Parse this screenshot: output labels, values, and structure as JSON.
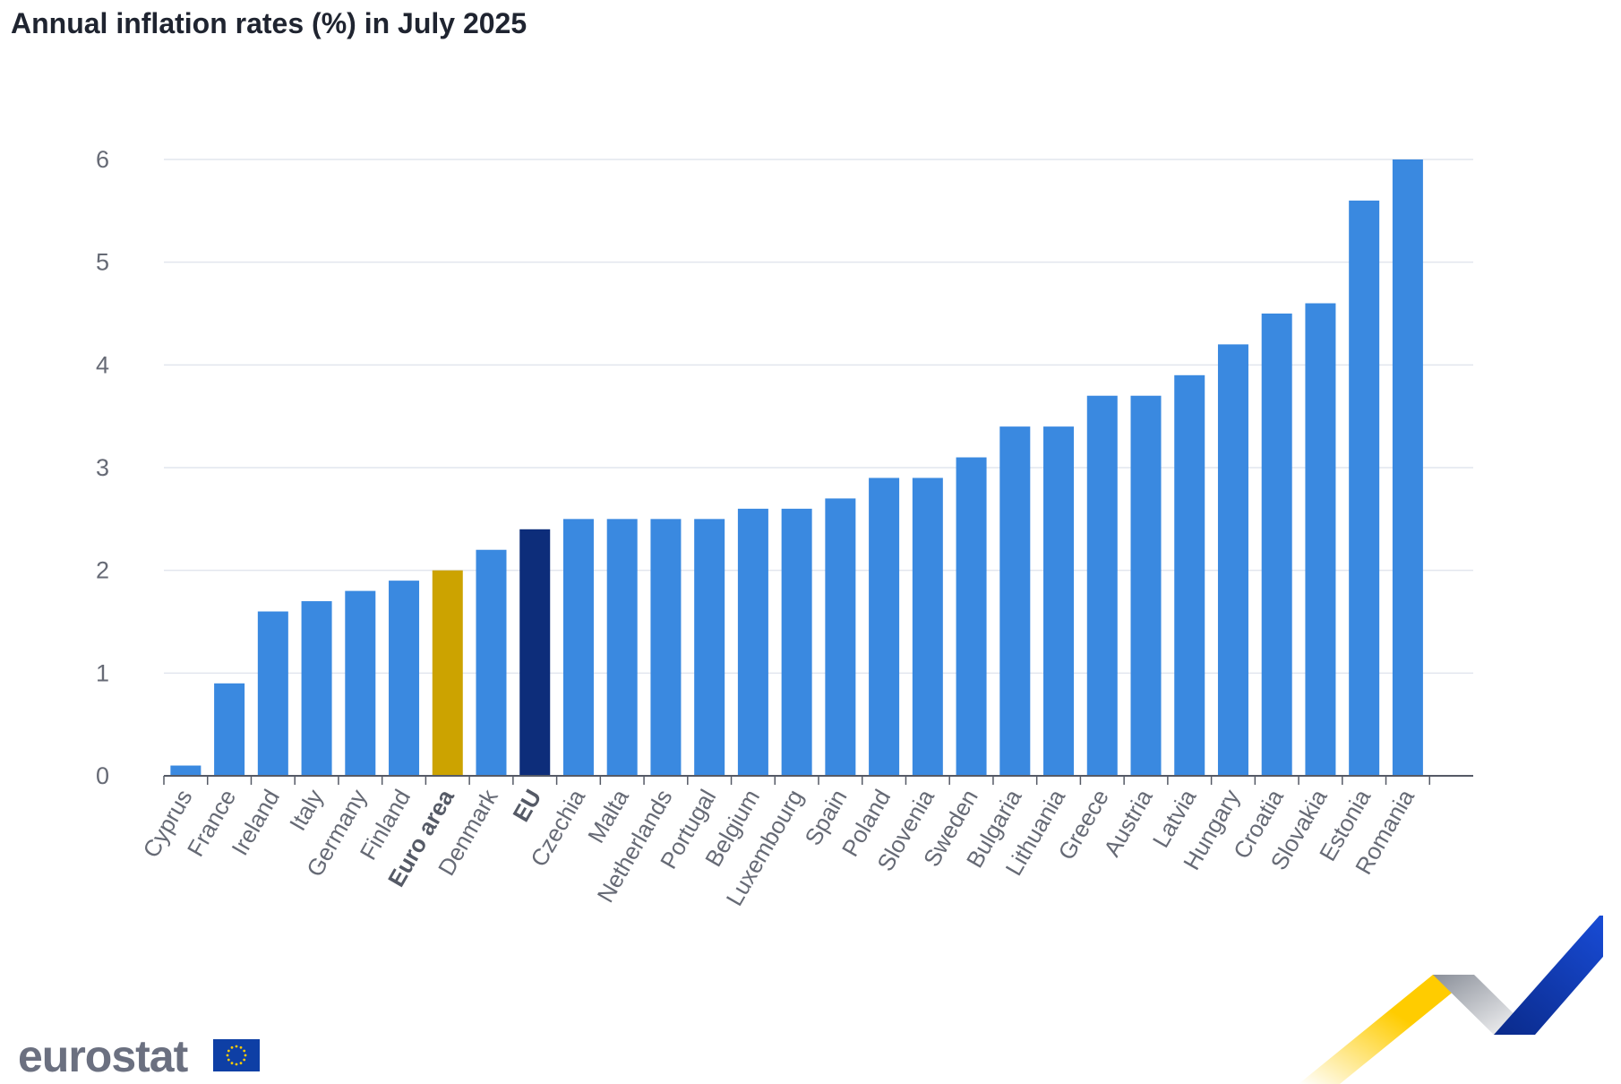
{
  "title": "Annual inflation rates (%) in July 2025",
  "logo_text": "eurostat",
  "colors": {
    "bar": "#3a89e0",
    "euro_area": "#cca300",
    "eu": "#0d2d7a",
    "grid": "#e2e6ee",
    "axis_text": "#666a75",
    "axis_line": "#555a66"
  },
  "chart_data": {
    "type": "bar",
    "title": "Annual inflation rates (%) in July 2025",
    "xlabel": "",
    "ylabel": "",
    "ylim": [
      0,
      6
    ],
    "yticks": [
      0,
      1,
      2,
      3,
      4,
      5,
      6
    ],
    "grid": true,
    "categories": [
      "Cyprus",
      "France",
      "Ireland",
      "Italy",
      "Germany",
      "Finland",
      "Euro area",
      "Denmark",
      "EU",
      "Czechia",
      "Malta",
      "Netherlands",
      "Portugal",
      "Belgium",
      "Luxembourg",
      "Spain",
      "Poland",
      "Slovenia",
      "Sweden",
      "Bulgaria",
      "Lithuania",
      "Greece",
      "Austria",
      "Latvia",
      "Hungary",
      "Croatia",
      "Slovakia",
      "Estonia",
      "Romania"
    ],
    "values": [
      0.1,
      0.9,
      1.6,
      1.7,
      1.8,
      1.9,
      2.0,
      2.2,
      2.4,
      2.5,
      2.5,
      2.5,
      2.5,
      2.6,
      2.6,
      2.7,
      2.9,
      2.9,
      3.1,
      3.4,
      3.4,
      3.7,
      3.7,
      3.9,
      4.2,
      4.5,
      4.6,
      5.6,
      6.0
    ],
    "highlight": {
      "Euro area": "euro_area",
      "EU": "eu"
    },
    "bold_labels": [
      "Euro area",
      "EU"
    ]
  }
}
